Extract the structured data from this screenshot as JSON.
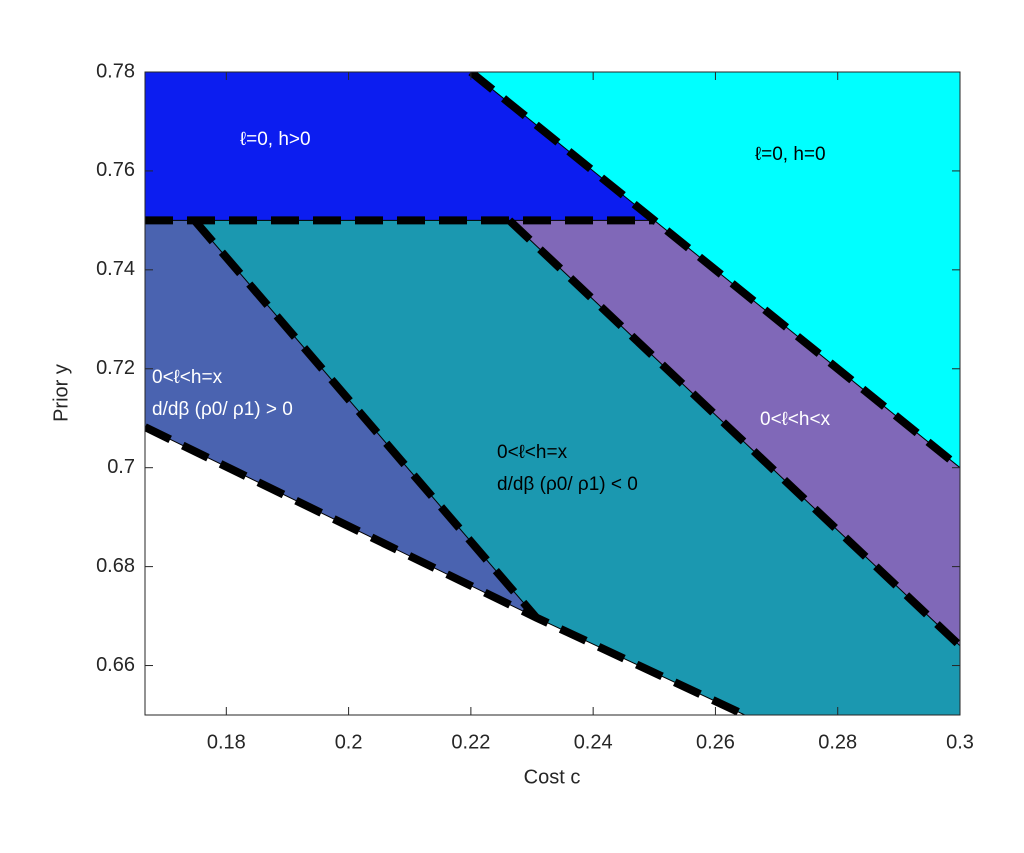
{
  "chart_data": {
    "type": "region",
    "xlabel": "Cost c",
    "ylabel": "Prior y",
    "xlim": [
      0.1667,
      0.3
    ],
    "ylim": [
      0.65,
      0.78
    ],
    "xticks": [
      0.18,
      0.2,
      0.22,
      0.24,
      0.26,
      0.28,
      0.3
    ],
    "yticks": [
      0.66,
      0.68,
      0.7,
      0.72,
      0.74,
      0.76,
      0.78
    ],
    "regions": [
      {
        "color": "#0c1df0",
        "x": [
          0.1667,
          0.22,
          0.25,
          0.1667
        ],
        "y": [
          0.78,
          0.78,
          0.75,
          0.75
        ]
      },
      {
        "color": "#00ffff",
        "x": [
          0.22,
          0.3,
          0.3,
          0.25
        ],
        "y": [
          0.78,
          0.78,
          0.7,
          0.75
        ]
      },
      {
        "color": "#8068b8",
        "x": [
          0.25,
          0.3,
          0.3,
          0.2263
        ],
        "y": [
          0.75,
          0.7,
          0.664,
          0.75
        ]
      },
      {
        "color": "#1b98b0",
        "x": [
          0.1748,
          0.2263,
          0.3,
          0.3,
          0.2648,
          0.2307
        ],
        "y": [
          0.75,
          0.75,
          0.664,
          0.65,
          0.65,
          0.6697
        ]
      },
      {
        "color": "#4a63b0",
        "x": [
          0.1667,
          0.1748,
          0.2307,
          0.1667
        ],
        "y": [
          0.75,
          0.75,
          0.6697,
          0.7082
        ]
      }
    ],
    "boundaries": [
      {
        "x": [
          0.1667,
          0.25
        ],
        "y": [
          0.75,
          0.75
        ]
      },
      {
        "x": [
          0.22,
          0.25,
          0.3
        ],
        "y": [
          0.78,
          0.75,
          0.7
        ]
      },
      {
        "x": [
          0.2263,
          0.3
        ],
        "y": [
          0.75,
          0.664
        ]
      },
      {
        "x": [
          0.1748,
          0.2307
        ],
        "y": [
          0.75,
          0.6697
        ]
      },
      {
        "x": [
          0.1667,
          0.2307,
          0.2648
        ],
        "y": [
          0.7082,
          0.6697,
          0.65
        ]
      }
    ],
    "annotations": [
      {
        "lines": [
          "ℓ=0, h>0"
        ],
        "color": "#ffffff"
      },
      {
        "lines": [
          "ℓ=0, h=0"
        ],
        "color": "#000000"
      },
      {
        "lines": [
          "0<ℓ<h=x",
          "d/dβ  (ρ0/ ρ1) > 0"
        ],
        "color": "#ffffff"
      },
      {
        "lines": [
          "0<ℓ<h=x",
          "d/dβ  (ρ0/ ρ1) < 0"
        ],
        "color": "#000000"
      },
      {
        "lines": [
          "0<ℓ<h<x"
        ],
        "color": "#ffffff"
      }
    ]
  }
}
